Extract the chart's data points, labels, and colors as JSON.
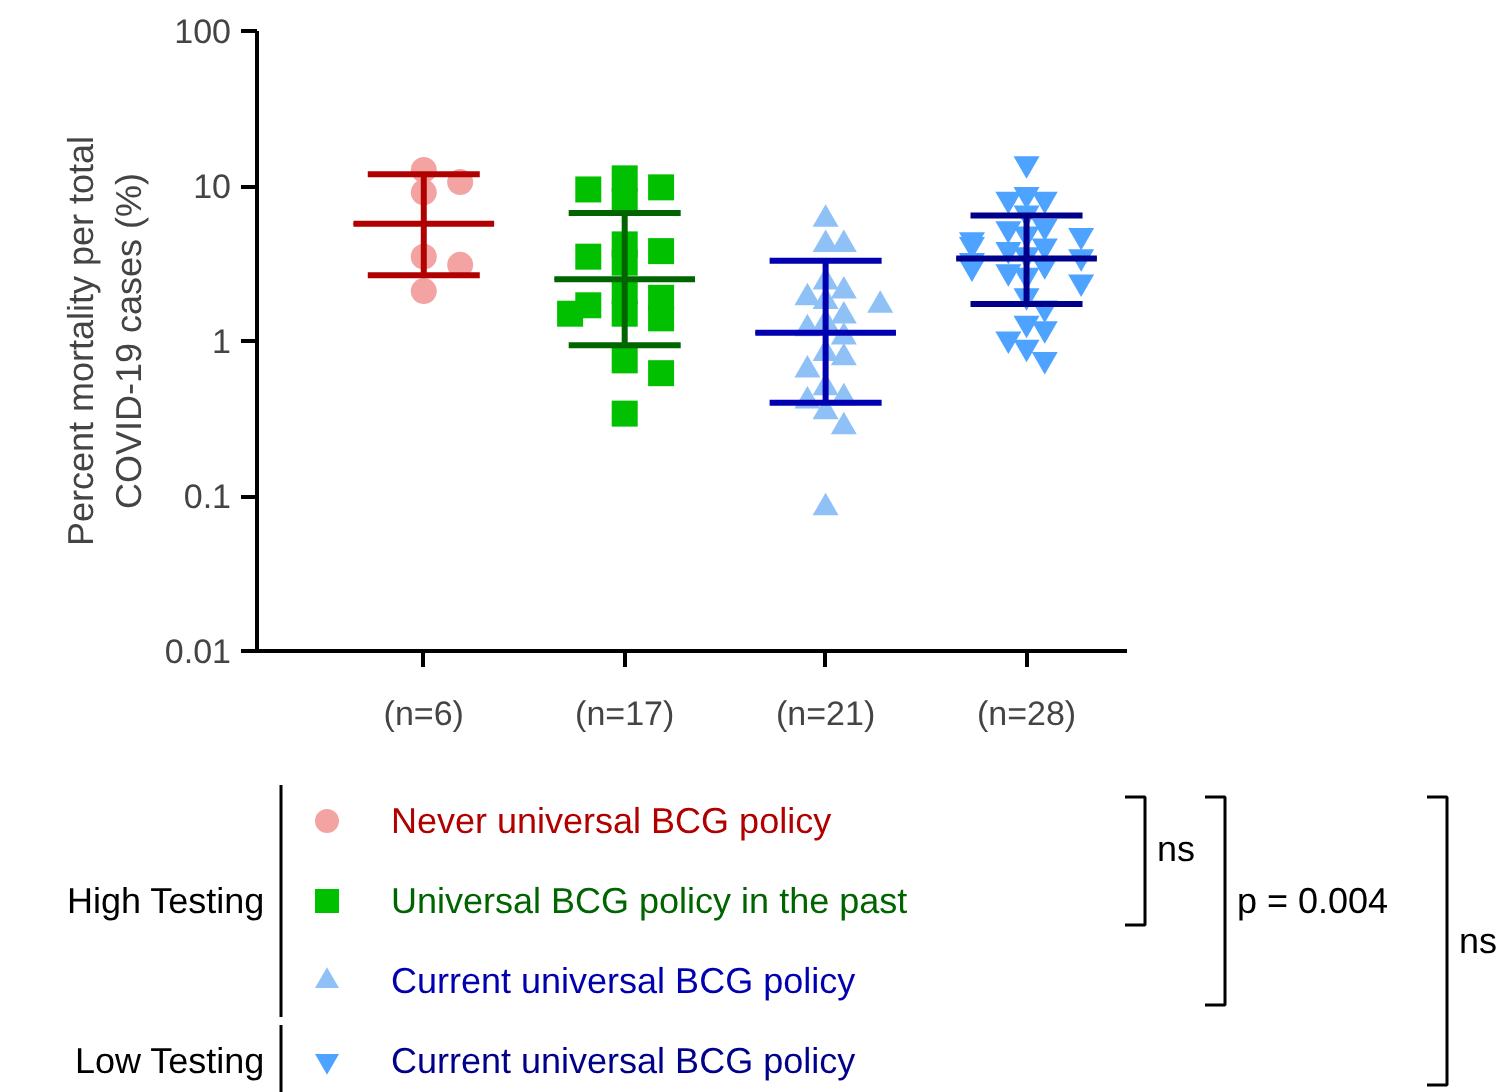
{
  "chart_data": {
    "type": "scatter",
    "ylabel": "Percent mortality per total\nCOVID-19 cases (%)",
    "categories": [
      "(n=6)",
      "(n=17)",
      "(n=21)",
      "(n=28)"
    ],
    "log": true,
    "ylim": [
      0.01,
      100
    ],
    "yticks": [
      0.01,
      0.1,
      1,
      10,
      100
    ],
    "grid": false,
    "legend": "bottom",
    "series": [
      {
        "name": "Never universal BCG policy",
        "color": "#f4a3a3",
        "marker": "circle",
        "x": [
          "(n=6)",
          "(n=6)",
          "(n=6)",
          "(n=6)",
          "(n=6)",
          "(n=6)"
        ],
        "values": [
          12.7,
          10.6,
          9.1,
          3.5,
          3.1,
          2.1
        ]
      },
      {
        "name": "Universal BCG policy in the past",
        "color": "#00c000",
        "marker": "square",
        "x": [
          "(n=17)",
          "(n=17)",
          "(n=17)",
          "(n=17)",
          "(n=17)",
          "(n=17)",
          "(n=17)",
          "(n=17)",
          "(n=17)",
          "(n=17)",
          "(n=17)",
          "(n=17)",
          "(n=17)",
          "(n=17)",
          "(n=17)",
          "(n=17)",
          "(n=17)"
        ],
        "values": [
          11.2,
          9.8,
          9.5,
          8.0,
          4.2,
          3.8,
          3.5,
          3.2,
          2.1,
          1.9,
          1.7,
          1.5,
          1.5,
          1.4,
          0.75,
          0.62,
          0.34
        ]
      },
      {
        "name": "Current universal BCG policy",
        "color": "#8fc1f7",
        "marker": "triangle",
        "x": [
          "(n=21)",
          "(n=21)",
          "(n=21)",
          "(n=21)",
          "(n=21)",
          "(n=21)",
          "(n=21)",
          "(n=21)",
          "(n=21)",
          "(n=21)",
          "(n=21)",
          "(n=21)",
          "(n=21)",
          "(n=21)",
          "(n=21)",
          "(n=21)",
          "(n=21)",
          "(n=21)",
          "(n=21)",
          "(n=21)",
          "(n=21)"
        ],
        "values": [
          6.1,
          4.2,
          4.2,
          2.4,
          2.1,
          1.9,
          1.8,
          1.7,
          1.45,
          1.3,
          1.2,
          1.06,
          0.83,
          0.78,
          0.65,
          0.5,
          0.43,
          0.41,
          0.35,
          0.28,
          0.084
        ]
      },
      {
        "name": "Current universal BCG policy",
        "color": "#4da3ff",
        "marker": "triangle",
        "x": [
          "(n=28)",
          "(n=28)",
          "(n=28)",
          "(n=28)",
          "(n=28)",
          "(n=28)",
          "(n=28)",
          "(n=28)",
          "(n=28)",
          "(n=28)",
          "(n=28)",
          "(n=28)",
          "(n=28)",
          "(n=28)",
          "(n=28)",
          "(n=28)",
          "(n=28)",
          "(n=28)",
          "(n=28)",
          "(n=28)",
          "(n=28)",
          "(n=28)",
          "(n=28)",
          "(n=28)",
          "(n=28)",
          "(n=28)",
          "(n=28)",
          "(n=28)"
        ],
        "values": [
          13.9,
          8.8,
          8.2,
          8.2,
          6.7,
          5.5,
          5.3,
          4.9,
          4.8,
          4.5,
          4.2,
          4.1,
          3.9,
          3.6,
          3.5,
          3.3,
          3.1,
          3.0,
          2.8,
          2.66,
          2.4,
          1.96,
          1.63,
          1.3,
          1.2,
          1.03,
          0.91,
          0.76
        ]
      },
      {
        "type": "box",
        "colors": [
          "#b00000",
          "#006400",
          "#0000b0",
          "#00008b"
        ],
        "boxes": [
          {
            "low": 2.66,
            "q1": 5.7,
            "median": 5.7,
            "q3": 5.7,
            "high": 11.9
          },
          {
            "low": 0.94,
            "q1": 2.5,
            "median": 2.5,
            "q3": 2.5,
            "high": 6.7
          },
          {
            "low": 0.4,
            "q1": 1.13,
            "median": 1.13,
            "q3": 1.13,
            "high": 3.3
          },
          {
            "low": 1.73,
            "q1": 3.4,
            "median": 3.4,
            "q3": 3.4,
            "high": 6.45
          }
        ]
      }
    ],
    "annotations": [
      "High Testing",
      "Low Testing",
      "ns",
      "p = 0.004",
      "ns"
    ]
  }
}
